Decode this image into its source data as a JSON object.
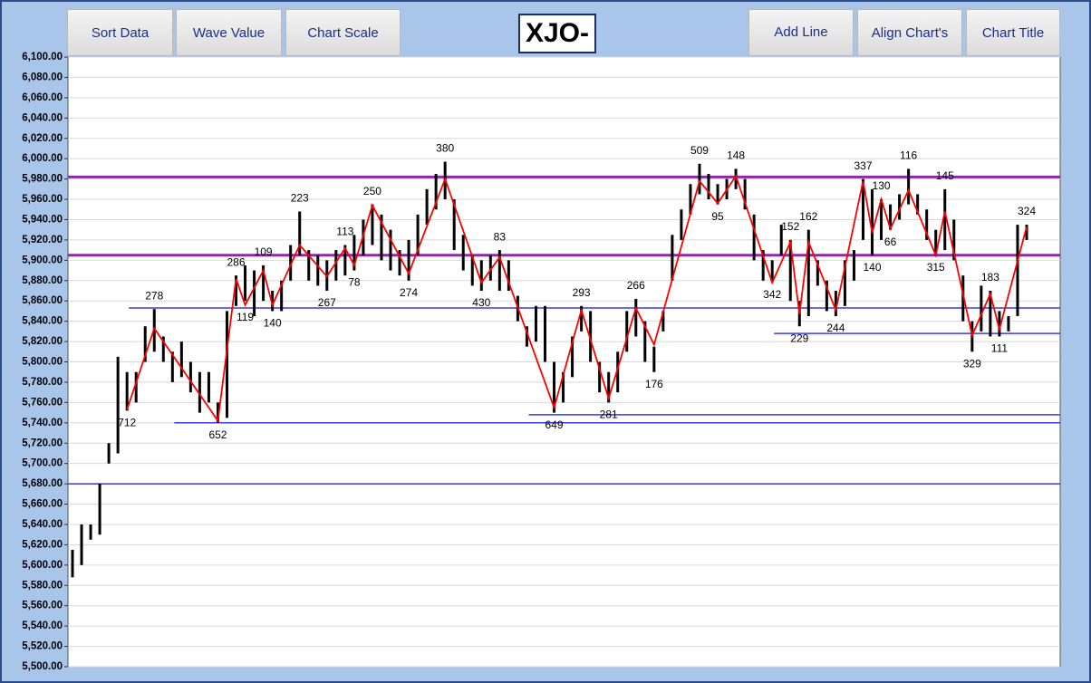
{
  "buttons": [
    "Sort Data",
    "Wave Value",
    "Chart Scale",
    "Add Line",
    "Align Chart's",
    "Chart Title"
  ],
  "chart_data": {
    "type": "ohlc",
    "title": "XJO-",
    "color": "#000000",
    "grid": true,
    "ylim": [
      5500,
      6100
    ],
    "yticks": [
      {
        "value": 5500,
        "label": "5,500.00"
      },
      {
        "value": 5520,
        "label": "5,520.00"
      },
      {
        "value": 5540,
        "label": "5,540.00"
      },
      {
        "value": 5560,
        "label": "5,560.00"
      },
      {
        "value": 5580,
        "label": "5,580.00"
      },
      {
        "value": 5600,
        "label": "5,600.00"
      },
      {
        "value": 5620,
        "label": "5,620.00"
      },
      {
        "value": 5640,
        "label": "5,640.00"
      },
      {
        "value": 5660,
        "label": "5,660.00"
      },
      {
        "value": 5680,
        "label": "5,680.00"
      },
      {
        "value": 5700,
        "label": "5,700.00"
      },
      {
        "value": 5720,
        "label": "5,720.00"
      },
      {
        "value": 5740,
        "label": "5,740.00"
      },
      {
        "value": 5760,
        "label": "5,760.00"
      },
      {
        "value": 5780,
        "label": "5,780.00"
      },
      {
        "value": 5800,
        "label": "5,800.00"
      },
      {
        "value": 5820,
        "label": "5,820.00"
      },
      {
        "value": 5840,
        "label": "5,840.00"
      },
      {
        "value": 5860,
        "label": "5,860.00"
      },
      {
        "value": 5880,
        "label": "5,880.00"
      },
      {
        "value": 5900,
        "label": "5,900.00"
      },
      {
        "value": 5920,
        "label": "5,920.00"
      },
      {
        "value": 5940,
        "label": "5,940.00"
      },
      {
        "value": 5960,
        "label": "5,960.00"
      },
      {
        "value": 5980,
        "label": "5,980.00"
      },
      {
        "value": 6000,
        "label": "6,000.00"
      },
      {
        "value": 6020,
        "label": "6,020.00"
      },
      {
        "value": 6040,
        "label": "6,040.00"
      },
      {
        "value": 6060,
        "label": "6,060.00"
      },
      {
        "value": 6080,
        "label": "6,080.00"
      },
      {
        "value": 6100,
        "label": "6,100.00"
      }
    ],
    "high": [
      5615,
      5640,
      5640,
      5680,
      5720,
      5805,
      5790,
      5790,
      5835,
      5852,
      5825,
      5810,
      5820,
      5800,
      5790,
      5790,
      5760,
      5850,
      5885,
      5895,
      5890,
      5895,
      5870,
      5880,
      5915,
      5948,
      5910,
      5905,
      5900,
      5910,
      5915,
      5925,
      5940,
      5955,
      5945,
      5930,
      5910,
      5920,
      5945,
      5970,
      5985,
      5997,
      5960,
      5925,
      5905,
      5900,
      5905,
      5910,
      5900,
      5865,
      5835,
      5855,
      5855,
      5800,
      5790,
      5825,
      5855,
      5850,
      5800,
      5790,
      5810,
      5850,
      5862,
      5840,
      5815,
      5850,
      5925,
      5950,
      5975,
      5995,
      5985,
      5975,
      5980,
      5990,
      5980,
      5945,
      5910,
      5900,
      5935,
      5920,
      5860,
      5930,
      5900,
      5880,
      5870,
      5900,
      5910,
      5980,
      5970,
      5960,
      5955,
      5965,
      5990,
      5965,
      5950,
      5930,
      5970,
      5940,
      5885,
      5840,
      5875,
      5870,
      5850,
      5845,
      5935,
      5935
    ],
    "low": [
      5588,
      5600,
      5625,
      5630,
      5700,
      5710,
      5752,
      5760,
      5800,
      5810,
      5800,
      5780,
      5785,
      5770,
      5750,
      5760,
      5740,
      5745,
      5855,
      5860,
      5845,
      5860,
      5850,
      5850,
      5880,
      5905,
      5880,
      5875,
      5870,
      5880,
      5885,
      5890,
      5905,
      5915,
      5900,
      5890,
      5885,
      5880,
      5905,
      5935,
      5950,
      5960,
      5910,
      5890,
      5875,
      5870,
      5880,
      5870,
      5870,
      5840,
      5815,
      5820,
      5800,
      5750,
      5760,
      5785,
      5830,
      5800,
      5770,
      5760,
      5770,
      5810,
      5825,
      5800,
      5790,
      5830,
      5880,
      5920,
      5945,
      5965,
      5960,
      5955,
      5960,
      5970,
      5950,
      5900,
      5880,
      5880,
      5905,
      5860,
      5835,
      5845,
      5875,
      5850,
      5845,
      5855,
      5880,
      5920,
      5905,
      5920,
      5930,
      5940,
      5955,
      5945,
      5920,
      5905,
      5910,
      5900,
      5840,
      5810,
      5830,
      5825,
      5825,
      5830,
      5845,
      5920
    ],
    "wave": {
      "color": "#ff0000",
      "x": [
        6,
        9,
        16,
        18,
        19,
        21,
        22,
        25,
        28,
        30,
        31,
        33,
        37,
        41,
        45,
        47,
        53,
        56,
        59,
        62,
        64,
        69,
        71,
        73,
        77,
        79,
        80,
        81,
        84,
        87,
        88,
        89,
        90,
        92,
        95,
        96,
        99,
        101,
        102,
        105
      ],
      "values": [
        5753,
        5833,
        5742,
        5882,
        5856,
        5890,
        5856,
        5915,
        5884,
        5912,
        5895,
        5954,
        5887,
        5980,
        5878,
        5903,
        5755,
        5851,
        5764,
        5853,
        5817,
        5978,
        5956,
        5983,
        5878,
        5918,
        5847,
        5918,
        5851,
        5978,
        5927,
        5960,
        5931,
        5969,
        5905,
        5948,
        5826,
        5867,
        5832,
        5933
      ],
      "labels": [
        712,
        278,
        652,
        286,
        119,
        109,
        140,
        223,
        267,
        113,
        78,
        250,
        274,
        380,
        430,
        83,
        649,
        293,
        281,
        266,
        176,
        509,
        95,
        148,
        342,
        152,
        229,
        162,
        244,
        337,
        140,
        130,
        66,
        116,
        315,
        145,
        329,
        183,
        111,
        324
      ]
    },
    "hlines": [
      {
        "value": 5982,
        "color": "#8b2aa8"
      },
      {
        "value": 5905,
        "color": "#8b2aa8"
      },
      {
        "value": 5853,
        "color": "#3a3ae0",
        "from": 7
      },
      {
        "value": 5828,
        "color": "#3a3ae0",
        "from": 78
      },
      {
        "value": 5748,
        "color": "#3a3ae0",
        "from": 51
      },
      {
        "value": 5740,
        "color": "#3a3ae0",
        "from": 12
      },
      {
        "value": 5680,
        "color": "#3a3ae0"
      }
    ]
  }
}
